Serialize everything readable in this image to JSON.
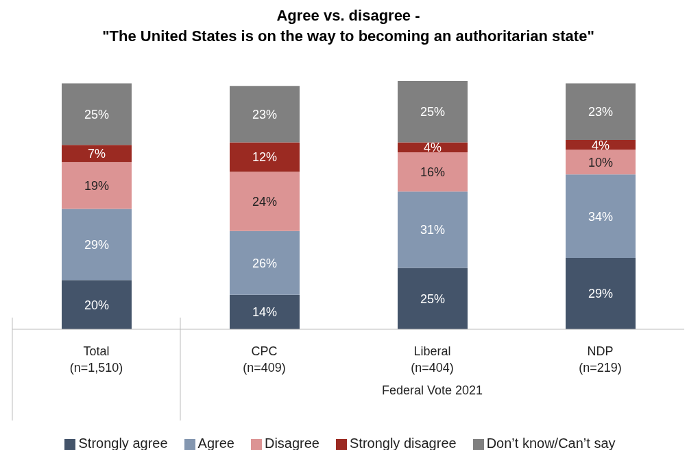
{
  "chart_data": {
    "type": "bar",
    "stacked": true,
    "legend": "bottom",
    "title": "Agree vs. disagree -\n\"The United States is on the way to becoming an authoritarian state\"",
    "categories": [
      "Total\n(n=1,510)",
      "CPC\n(n=409)",
      "Liberal\n(n=404)",
      "NDP\n(n=219)"
    ],
    "annotations": [
      "Federal Vote 2021"
    ],
    "series": [
      {
        "name": "Strongly agree",
        "color": "#44546a",
        "values": [
          20,
          14,
          25,
          29
        ],
        "value_labels": [
          "20%",
          "14%",
          "25%",
          "29%"
        ]
      },
      {
        "name": "Agree",
        "color": "#8497b0",
        "values": [
          29,
          26,
          31,
          34
        ],
        "value_labels": [
          "29%",
          "26%",
          "31%",
          "34%"
        ]
      },
      {
        "name": "Disagree",
        "color": "#dc9494",
        "values": [
          19,
          24,
          16,
          10
        ],
        "value_labels": [
          "19%",
          "24%",
          "16%",
          "10%"
        ]
      },
      {
        "name": "Strongly disagree",
        "color": "#9b2a22",
        "values": [
          7,
          12,
          4,
          4
        ],
        "value_labels": [
          "7%",
          "12%",
          "4%",
          "4%"
        ]
      },
      {
        "name": "Don’t know/Can’t say",
        "color": "#808080",
        "values": [
          25,
          23,
          25,
          23
        ],
        "value_labels": [
          "25%",
          "23%",
          "25%",
          "23%"
        ]
      }
    ]
  }
}
